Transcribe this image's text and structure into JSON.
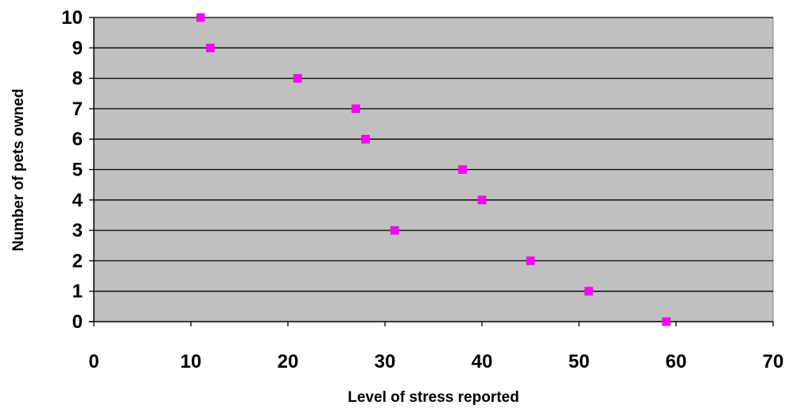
{
  "chart_data": {
    "type": "scatter",
    "title": "",
    "xlabel": "Level of stress reported",
    "ylabel": "Number of pets owned",
    "xlim": [
      0,
      70
    ],
    "ylim": [
      0,
      10
    ],
    "x_ticks": [
      "0",
      "10",
      "20",
      "30",
      "40",
      "50",
      "60",
      "70"
    ],
    "y_ticks": [
      "0",
      "1",
      "2",
      "3",
      "4",
      "5",
      "6",
      "7",
      "8",
      "9",
      "10"
    ],
    "grid": "horizontal",
    "legend": "none",
    "plot_background": "#c0c0c0",
    "gridline_color": "#000000",
    "marker": "square",
    "marker_color": "#ff00ff",
    "series": [
      {
        "points": [
          {
            "x": 11,
            "y": 10
          },
          {
            "x": 12,
            "y": 9
          },
          {
            "x": 21,
            "y": 8
          },
          {
            "x": 27,
            "y": 7
          },
          {
            "x": 28,
            "y": 6
          },
          {
            "x": 38,
            "y": 5
          },
          {
            "x": 40,
            "y": 4
          },
          {
            "x": 31,
            "y": 3
          },
          {
            "x": 45,
            "y": 2
          },
          {
            "x": 51,
            "y": 1
          },
          {
            "x": 59,
            "y": 0
          }
        ]
      }
    ]
  }
}
